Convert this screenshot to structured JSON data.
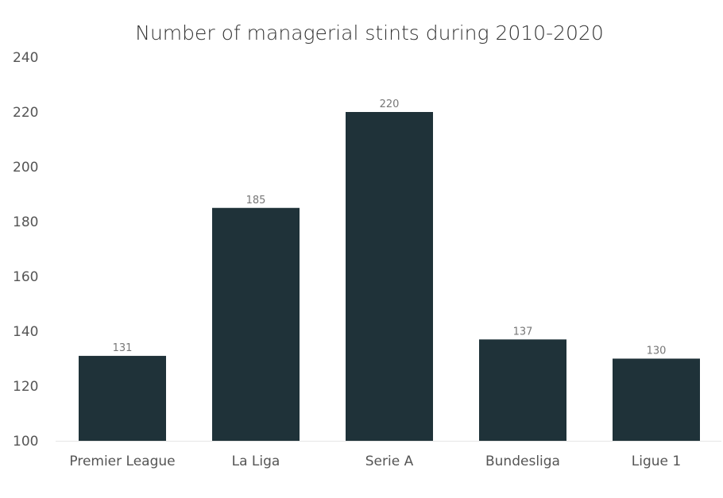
{
  "chart_data": {
    "type": "bar",
    "title": "Number of managerial stints during 2010-2020",
    "xlabel": "",
    "ylabel": "",
    "categories": [
      "Premier League",
      "La Liga",
      "Serie A",
      "Bundesliga",
      "Ligue 1"
    ],
    "values": [
      131,
      185,
      220,
      137,
      130
    ],
    "data_labels": [
      "131",
      "185",
      "220",
      "137",
      "130"
    ],
    "ylim": [
      100,
      240
    ],
    "y_ticks": [
      100,
      120,
      140,
      160,
      180,
      200,
      220,
      240
    ],
    "y_tick_labels": [
      "100",
      "120",
      "140",
      "160",
      "180",
      "200",
      "220",
      "240"
    ],
    "bar_color": "#1f3239",
    "grid": false,
    "legend": "none"
  }
}
